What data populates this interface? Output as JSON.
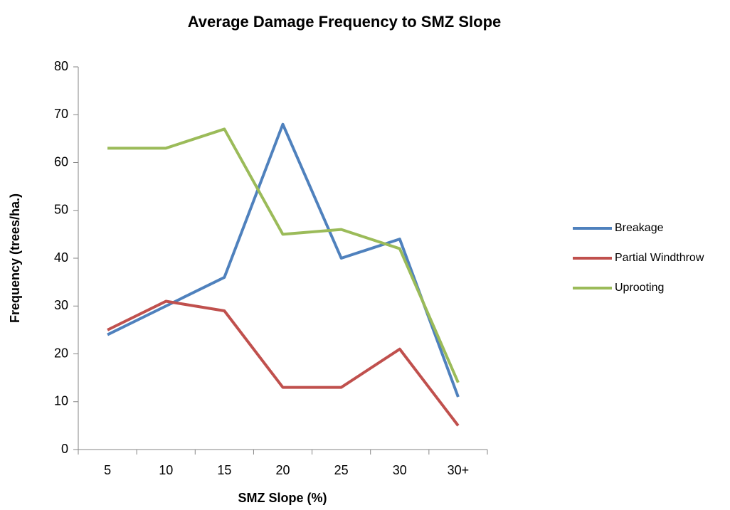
{
  "chart_data": {
    "type": "line",
    "title": "Average Damage Frequency to SMZ Slope",
    "x_label": "SMZ Slope (%)",
    "y_label": "Frequency (trees/ha.)",
    "categories": [
      "5",
      "10",
      "15",
      "20",
      "25",
      "30",
      "30+"
    ],
    "series": [
      {
        "name": "Breakage",
        "color": "#4f81bd",
        "values": [
          24,
          30,
          36,
          68,
          40,
          44,
          11
        ]
      },
      {
        "name": "Partial Windthrow",
        "color": "#c0504d",
        "values": [
          25,
          31,
          29,
          13,
          13,
          21,
          5
        ]
      },
      {
        "name": "Uprooting",
        "color": "#9bbb59",
        "values": [
          63,
          63,
          67,
          45,
          46,
          42,
          14
        ]
      }
    ],
    "ylim": [
      0,
      80
    ],
    "yticks": [
      0,
      10,
      20,
      30,
      40,
      50,
      60,
      70,
      80
    ],
    "grid": false,
    "legend": "right"
  }
}
